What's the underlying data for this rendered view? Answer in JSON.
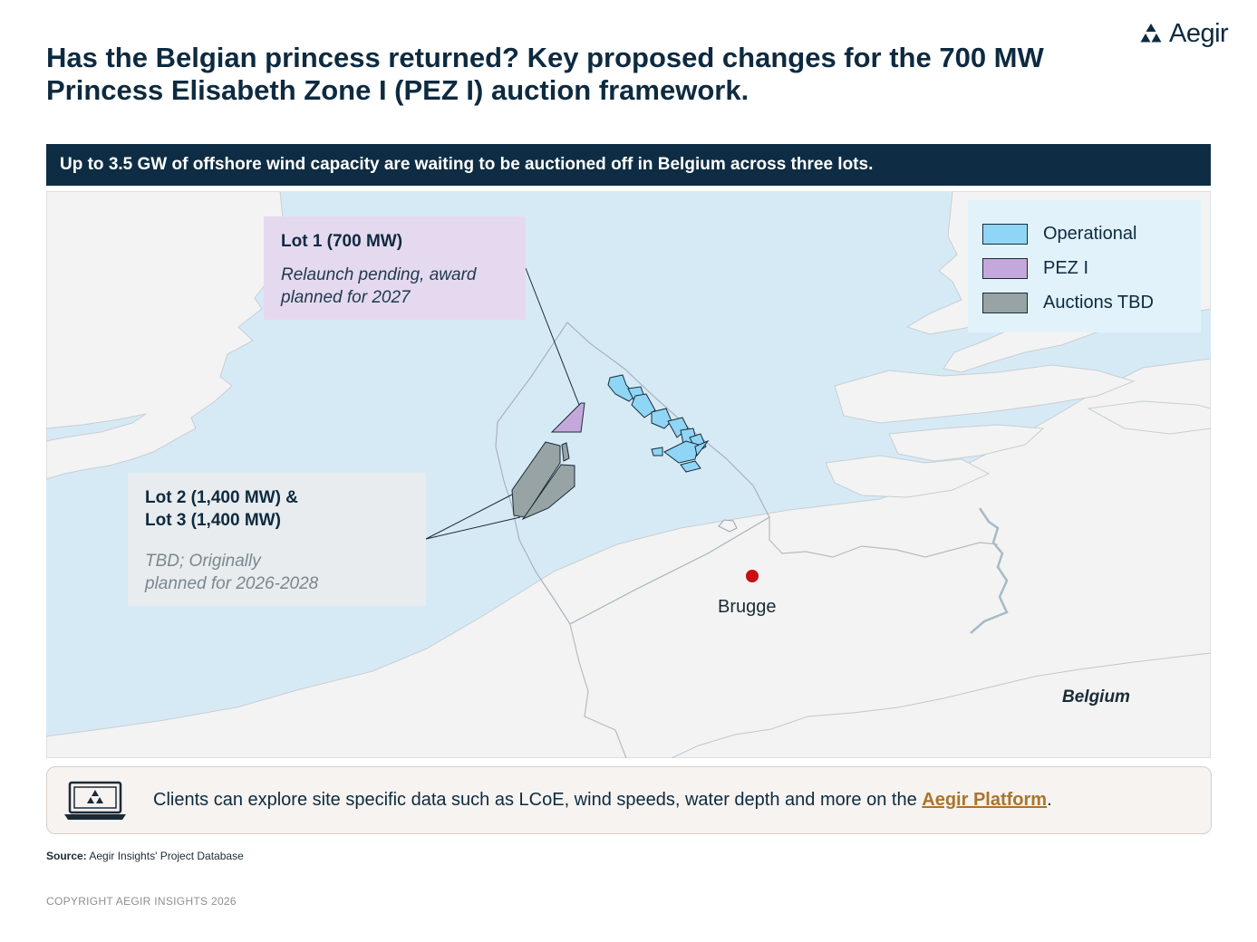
{
  "brand": {
    "name": "Aegir",
    "colors": {
      "navy": "#0e2d44",
      "accent": "#a9742d"
    }
  },
  "title": "Has the Belgian princess returned? Key proposed changes for the 700 MW Princess Elisabeth Zone I (PEZ I) auction framework.",
  "banner": "Up to 3.5 GW of offshore wind capacity are waiting to be auctioned off in Belgium across three lots.",
  "map": {
    "callouts": {
      "lot1": {
        "title": "Lot 1 (700 MW)",
        "body": "Relaunch pending, award planned for 2027"
      },
      "lot23": {
        "title_line1": "Lot 2 (1,400 MW) &",
        "title_line2": "Lot 3 (1,400 MW)",
        "body_line1": "TBD; Originally",
        "body_line2": "planned for 2026-2028"
      }
    },
    "legend": [
      {
        "label": "Operational",
        "color": "#8fd5f5"
      },
      {
        "label": "PEZ I",
        "color": "#c4a8db"
      },
      {
        "label": "Auctions TBD",
        "color": "#97a3a4"
      }
    ],
    "city": "Brugge",
    "country": "Belgium"
  },
  "info": {
    "text_before": "Clients can explore site specific data such as LCoE, wind speeds, water depth and more on the ",
    "link_text": "Aegir Platform",
    "text_after": "."
  },
  "source": {
    "label": "Source:",
    "text": "Aegir Insights' Project Database"
  },
  "copyright": "COPYRIGHT AEGIR INSIGHTS 2026"
}
